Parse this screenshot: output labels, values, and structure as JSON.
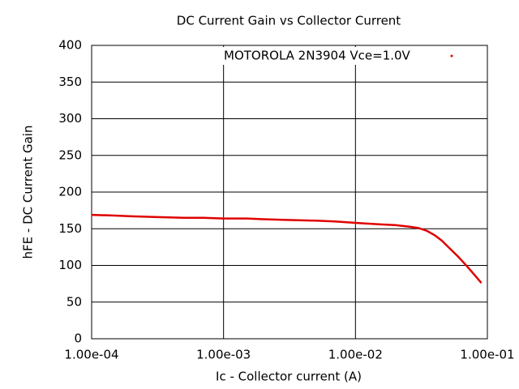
{
  "chart_data": {
    "type": "line",
    "title": "DC Current Gain vs Collector Current",
    "x_label": "Ic - Collector current (A)",
    "y_label": "hFE - DC Current Gain",
    "x_scale": "log",
    "grid": true,
    "legend": "top-right",
    "xlim": [
      0.0001,
      0.1
    ],
    "ylim": [
      0,
      400
    ],
    "xticks": [
      {
        "value": 0.0001,
        "label": "1.00e-04"
      },
      {
        "value": 0.001,
        "label": "1.00e-03"
      },
      {
        "value": 0.01,
        "label": "1.00e-02"
      },
      {
        "value": 0.1,
        "label": "1.00e-01"
      }
    ],
    "yticks": [
      0,
      50,
      100,
      150,
      200,
      250,
      300,
      350,
      400
    ],
    "x": [
      0.0001,
      0.00015,
      0.0002,
      0.0003,
      0.0005,
      0.0007,
      0.001,
      0.0015,
      0.002,
      0.003,
      0.005,
      0.007,
      0.01,
      0.015,
      0.02,
      0.025,
      0.03,
      0.035,
      0.04,
      0.045,
      0.05,
      0.06,
      0.07,
      0.08,
      0.09
    ],
    "series": [
      {
        "name": "MOTOROLA 2N3904 Vce=1.0V",
        "color": "#e00000",
        "values": [
          169,
          168,
          167,
          166,
          165,
          165,
          164,
          164,
          163,
          162,
          161,
          160,
          158,
          156,
          155,
          153,
          151,
          147,
          141,
          134,
          126,
          112,
          99,
          87,
          76
        ]
      }
    ]
  }
}
